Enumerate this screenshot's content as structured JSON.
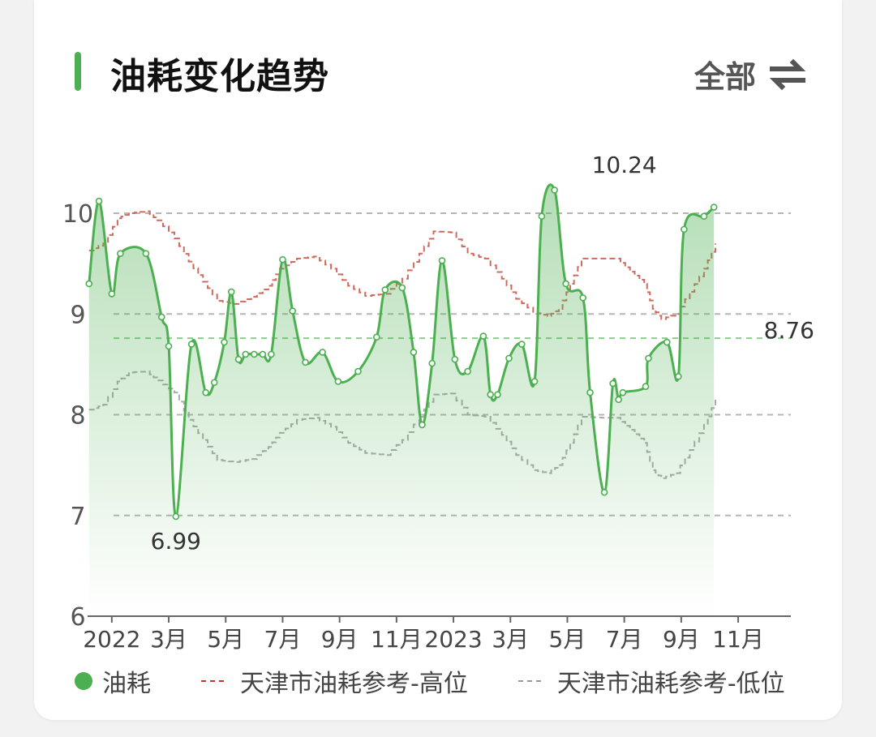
{
  "header": {
    "title": "油耗变化趋势",
    "filter_label": "全部"
  },
  "icons": {
    "swap": "swap-arrows-icon"
  },
  "colors": {
    "accent": "#4caf50",
    "high": "#c0392b",
    "low": "#999999"
  },
  "chart_data": {
    "type": "line",
    "title": "油耗变化趋势",
    "ylim": [
      6,
      10.3
    ],
    "yticks": [
      6,
      7,
      8,
      9,
      10
    ],
    "xticks": [
      {
        "label": "2022",
        "x": 1.0
      },
      {
        "label": "3月",
        "x": 3.0
      },
      {
        "label": "5月",
        "x": 5.0
      },
      {
        "label": "7月",
        "x": 7.0
      },
      {
        "label": "9月",
        "x": 9.0
      },
      {
        "label": "11月",
        "x": 11.0
      },
      {
        "label": "2023",
        "x": 13.0
      },
      {
        "label": "3月",
        "x": 15.0
      },
      {
        "label": "5月",
        "x": 17.0
      },
      {
        "label": "7月",
        "x": 19.0
      },
      {
        "label": "9月",
        "x": 21.0
      },
      {
        "label": "11月",
        "x": 23.0
      }
    ],
    "xlim": [
      0.15,
      24.85
    ],
    "grid_lines": [
      7,
      8,
      9,
      10
    ],
    "avg_line": 8.76,
    "annotations": [
      {
        "text": "10.24",
        "x": 19.0,
        "y": 10.24,
        "pos": "above"
      },
      {
        "text": "6.99",
        "x": 3.25,
        "y": 6.99,
        "pos": "below"
      },
      {
        "text": "8.76",
        "x": 24.8,
        "y": 8.76,
        "pos": "right"
      }
    ],
    "series": [
      {
        "name": "油耗",
        "points": [
          [
            0.2,
            9.3
          ],
          [
            0.55,
            10.12
          ],
          [
            1.0,
            9.2
          ],
          [
            1.3,
            9.6
          ],
          [
            2.2,
            9.6
          ],
          [
            2.75,
            8.97
          ],
          [
            3.0,
            8.68
          ],
          [
            3.25,
            6.99
          ],
          [
            3.8,
            8.7
          ],
          [
            4.3,
            8.22
          ],
          [
            4.6,
            8.32
          ],
          [
            4.95,
            8.72
          ],
          [
            5.2,
            9.22
          ],
          [
            5.45,
            8.55
          ],
          [
            5.7,
            8.6
          ],
          [
            6.0,
            8.6
          ],
          [
            6.3,
            8.6
          ],
          [
            6.6,
            8.6
          ],
          [
            7.0,
            9.54
          ],
          [
            7.35,
            9.03
          ],
          [
            7.8,
            8.52
          ],
          [
            8.4,
            8.62
          ],
          [
            8.95,
            8.33
          ],
          [
            9.65,
            8.43
          ],
          [
            10.3,
            8.77
          ],
          [
            10.6,
            9.24
          ],
          [
            11.2,
            9.26
          ],
          [
            11.6,
            8.62
          ],
          [
            11.9,
            7.9
          ],
          [
            12.25,
            8.51
          ],
          [
            12.6,
            9.53
          ],
          [
            13.05,
            8.55
          ],
          [
            13.5,
            8.43
          ],
          [
            14.05,
            8.78
          ],
          [
            14.3,
            8.2
          ],
          [
            14.55,
            8.2
          ],
          [
            14.95,
            8.56
          ],
          [
            15.4,
            8.7
          ],
          [
            15.85,
            8.33
          ],
          [
            16.1,
            9.97
          ],
          [
            16.55,
            10.23
          ],
          [
            16.95,
            9.3
          ],
          [
            17.55,
            9.16
          ],
          [
            17.8,
            8.22
          ],
          [
            18.3,
            7.23
          ],
          [
            18.6,
            8.31
          ],
          [
            18.8,
            8.15
          ],
          [
            18.95,
            8.22
          ],
          [
            19.75,
            8.28
          ],
          [
            19.85,
            8.56
          ],
          [
            20.5,
            8.72
          ],
          [
            20.9,
            8.38
          ],
          [
            21.1,
            9.84
          ],
          [
            21.8,
            9.97
          ],
          [
            22.15,
            10.06
          ]
        ]
      },
      {
        "name": "天津市油耗参考-高位",
        "points": [
          [
            0.2,
            9.63
          ],
          [
            0.7,
            9.7
          ],
          [
            1.2,
            9.95
          ],
          [
            1.6,
            10.0
          ],
          [
            2.2,
            10.02
          ],
          [
            2.6,
            9.93
          ],
          [
            3.2,
            9.75
          ],
          [
            3.7,
            9.52
          ],
          [
            4.2,
            9.32
          ],
          [
            4.7,
            9.13
          ],
          [
            5.3,
            9.1
          ],
          [
            5.9,
            9.17
          ],
          [
            6.5,
            9.28
          ],
          [
            6.9,
            9.45
          ],
          [
            7.5,
            9.55
          ],
          [
            8.1,
            9.57
          ],
          [
            8.7,
            9.45
          ],
          [
            9.3,
            9.28
          ],
          [
            9.9,
            9.18
          ],
          [
            10.6,
            9.2
          ],
          [
            11.2,
            9.35
          ],
          [
            11.8,
            9.6
          ],
          [
            12.3,
            9.82
          ],
          [
            12.9,
            9.81
          ],
          [
            13.5,
            9.6
          ],
          [
            14.1,
            9.55
          ],
          [
            14.7,
            9.35
          ],
          [
            15.2,
            9.15
          ],
          [
            15.8,
            9.02
          ],
          [
            16.3,
            8.98
          ],
          [
            16.7,
            9.05
          ],
          [
            17.1,
            9.3
          ],
          [
            17.5,
            9.55
          ],
          [
            18.2,
            9.55
          ],
          [
            18.7,
            9.55
          ],
          [
            19.2,
            9.42
          ],
          [
            19.7,
            9.3
          ],
          [
            20.0,
            9.05
          ],
          [
            20.3,
            8.95
          ],
          [
            20.8,
            9.0
          ],
          [
            21.3,
            9.22
          ],
          [
            21.8,
            9.45
          ],
          [
            22.2,
            9.7
          ]
        ]
      },
      {
        "name": "天津市油耗参考-低位",
        "points": [
          [
            0.2,
            8.05
          ],
          [
            0.7,
            8.1
          ],
          [
            1.2,
            8.33
          ],
          [
            1.6,
            8.42
          ],
          [
            2.2,
            8.43
          ],
          [
            2.6,
            8.34
          ],
          [
            3.2,
            8.22
          ],
          [
            3.7,
            7.95
          ],
          [
            4.2,
            7.75
          ],
          [
            4.7,
            7.55
          ],
          [
            5.3,
            7.53
          ],
          [
            5.9,
            7.56
          ],
          [
            6.5,
            7.68
          ],
          [
            6.9,
            7.82
          ],
          [
            7.5,
            7.95
          ],
          [
            8.1,
            7.97
          ],
          [
            8.7,
            7.88
          ],
          [
            9.3,
            7.72
          ],
          [
            9.9,
            7.62
          ],
          [
            10.6,
            7.6
          ],
          [
            11.2,
            7.75
          ],
          [
            11.8,
            7.98
          ],
          [
            12.3,
            8.2
          ],
          [
            12.9,
            8.21
          ],
          [
            13.5,
            8.0
          ],
          [
            14.1,
            7.98
          ],
          [
            14.7,
            7.8
          ],
          [
            15.2,
            7.6
          ],
          [
            15.8,
            7.45
          ],
          [
            16.3,
            7.42
          ],
          [
            16.7,
            7.5
          ],
          [
            17.1,
            7.72
          ],
          [
            17.5,
            7.98
          ],
          [
            18.2,
            7.97
          ],
          [
            18.7,
            7.97
          ],
          [
            19.2,
            7.85
          ],
          [
            19.7,
            7.72
          ],
          [
            20.0,
            7.45
          ],
          [
            20.3,
            7.37
          ],
          [
            20.8,
            7.42
          ],
          [
            21.3,
            7.65
          ],
          [
            21.8,
            7.9
          ],
          [
            22.2,
            8.15
          ]
        ]
      }
    ],
    "legend": [
      "油耗",
      "天津市油耗参考-高位",
      "天津市油耗参考-低位"
    ]
  }
}
